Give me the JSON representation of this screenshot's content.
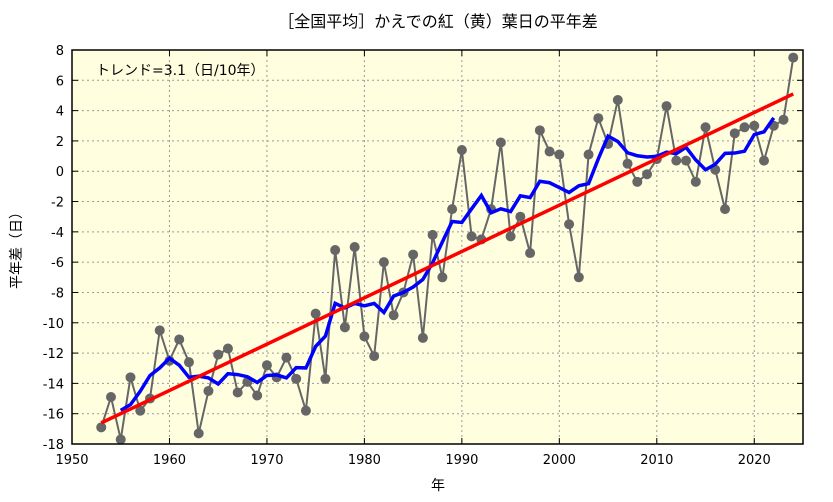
{
  "chart_data": {
    "type": "line",
    "title": "［全国平均］かえでの紅（黄）葉日の平年差",
    "xlabel": "年",
    "ylabel": "平年差（日）",
    "annotation": "トレンド=3.1（日/10年）",
    "xlim": [
      1950,
      2025
    ],
    "ylim": [
      -18,
      8
    ],
    "xticks": [
      1950,
      1960,
      1970,
      1980,
      1990,
      2000,
      2010,
      2020
    ],
    "yticks": [
      -18,
      -16,
      -14,
      -12,
      -10,
      -8,
      -6,
      -4,
      -2,
      0,
      2,
      4,
      6,
      8
    ],
    "grid": true,
    "colors": {
      "background": "#ffffe0",
      "points": "#666666",
      "running_mean": "#0000ff",
      "trend": "#ff0000"
    },
    "x": [
      1953,
      1954,
      1955,
      1956,
      1957,
      1958,
      1959,
      1960,
      1961,
      1962,
      1963,
      1964,
      1965,
      1966,
      1967,
      1968,
      1969,
      1970,
      1971,
      1972,
      1973,
      1974,
      1975,
      1976,
      1977,
      1978,
      1979,
      1980,
      1981,
      1982,
      1983,
      1984,
      1985,
      1986,
      1987,
      1988,
      1989,
      1990,
      1991,
      1992,
      1993,
      1994,
      1995,
      1996,
      1997,
      1998,
      1999,
      2000,
      2001,
      2002,
      2003,
      2004,
      2005,
      2006,
      2007,
      2008,
      2009,
      2010,
      2011,
      2012,
      2013,
      2014,
      2015,
      2016,
      2017,
      2018,
      2019,
      2020,
      2021,
      2022,
      2023,
      2024
    ],
    "values": [
      -16.9,
      -14.9,
      -17.7,
      -13.6,
      -15.8,
      -15.0,
      -10.5,
      -12.5,
      -11.1,
      -12.6,
      -17.3,
      -14.5,
      -12.1,
      -11.7,
      -14.6,
      -13.9,
      -14.8,
      -12.8,
      -13.6,
      -12.3,
      -13.7,
      -15.8,
      -9.4,
      -13.7,
      -5.2,
      -10.3,
      -5.0,
      -10.9,
      -12.2,
      -6.0,
      -9.5,
      -8.0,
      -5.5,
      -11.0,
      -4.2,
      -7.0,
      -2.5,
      1.4,
      -4.3,
      -4.5,
      -2.5,
      1.9,
      -4.3,
      -3.0,
      -5.4,
      2.7,
      1.3,
      1.1,
      -3.5,
      -7.0,
      1.1,
      3.5,
      1.8,
      4.7,
      0.5,
      -0.7,
      -0.2,
      0.8,
      4.3,
      0.7,
      0.7,
      -0.7,
      2.9,
      0.1,
      -2.5,
      2.5,
      2.9,
      3.0,
      0.7,
      3.0,
      3.4,
      7.5
    ],
    "running_mean_window": 5,
    "trend_per_decade": 3.1
  }
}
